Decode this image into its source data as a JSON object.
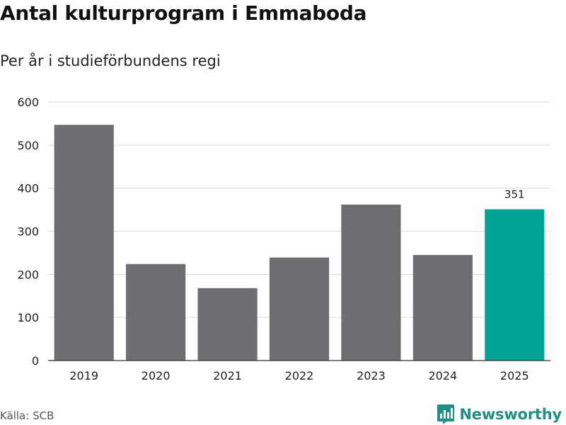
{
  "header": {
    "title": "Antal kulturprogram i Emmaboda",
    "subtitle": "Per år i studieförbundens regi"
  },
  "footer": {
    "source": "Källa: SCB",
    "brand": "Newsworthy"
  },
  "colors": {
    "bar": "#6e6d72",
    "highlight": "#00a398",
    "grid": "#dddddd",
    "brand": "#1f8f87"
  },
  "chart_data": {
    "type": "bar",
    "categories": [
      "2019",
      "2020",
      "2021",
      "2022",
      "2023",
      "2024",
      "2025"
    ],
    "values": [
      547,
      224,
      168,
      239,
      362,
      245,
      351
    ],
    "highlight_index": 6,
    "data_labels": [
      {
        "index": 6,
        "text": "351"
      }
    ],
    "ylim": [
      0,
      600
    ],
    "yticks": [
      0,
      100,
      200,
      300,
      400,
      500,
      600
    ],
    "title": "Antal kulturprogram i Emmaboda",
    "subtitle": "Per år i studieförbundens regi",
    "xlabel": "",
    "ylabel": "",
    "grid": true
  }
}
